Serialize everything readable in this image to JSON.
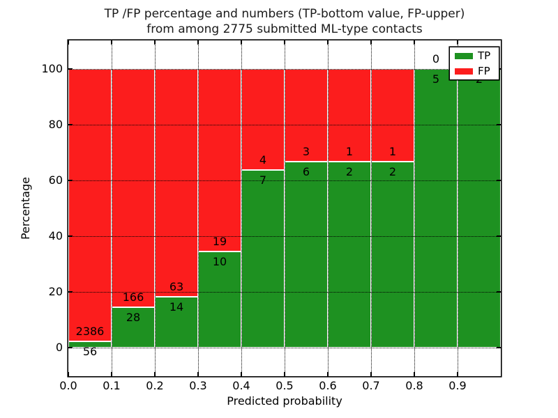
{
  "title": {
    "line1": "TP /FP percentage and numbers (TP-bottom value, FP-upper)",
    "line2": "from among 2775 submitted ML-type contacts"
  },
  "axes": {
    "xlabel": "Predicted probability",
    "ylabel": "Percentage",
    "x_tick_labels": [
      "0.0",
      "0.1",
      "0.2",
      "0.3",
      "0.4",
      "0.5",
      "0.6",
      "0.7",
      "0.8",
      "0.9"
    ],
    "y_tick_labels": [
      "0",
      "20",
      "40",
      "60",
      "80",
      "100"
    ]
  },
  "legend": {
    "items": [
      {
        "label": "TP",
        "color": "#1e9121"
      },
      {
        "label": "FP",
        "color": "#fc1d1d"
      }
    ]
  },
  "chart_data": {
    "type": "bar",
    "subtype": "stacked-percentage-histogram",
    "title": "TP /FP percentage and numbers (TP-bottom value, FP-upper) from among 2775 submitted ML-type contacts",
    "xlabel": "Predicted probability",
    "ylabel": "Percentage",
    "xlim": [
      0.0,
      1.0
    ],
    "ylim": [
      -10.25,
      110.25
    ],
    "x_bin_edges": [
      0.0,
      0.1,
      0.2,
      0.3,
      0.4,
      0.5,
      0.6,
      0.7,
      0.8,
      0.9,
      1.0
    ],
    "categories": [
      "0.0-0.1",
      "0.1-0.2",
      "0.2-0.3",
      "0.3-0.4",
      "0.4-0.5",
      "0.5-0.6",
      "0.6-0.7",
      "0.7-0.8",
      "0.8-0.9",
      "0.9-1.0"
    ],
    "series": [
      {
        "name": "TP",
        "position": "bottom",
        "color": "#1e9121",
        "counts": [
          56,
          28,
          14,
          10,
          7,
          6,
          2,
          2,
          5,
          2
        ]
      },
      {
        "name": "FP",
        "position": "top",
        "color": "#fc1d1d",
        "counts": [
          2386,
          166,
          63,
          19,
          4,
          3,
          1,
          1,
          0,
          0
        ]
      }
    ],
    "tp_percent": [
      2.3,
      14.4,
      18.2,
      34.5,
      63.6,
      66.7,
      66.7,
      66.7,
      100.0,
      100.0
    ],
    "total_contacts": 2775,
    "grid": "dotted-both-axes",
    "bar_edge_color": "#ffffff",
    "legend_position": "upper-right"
  }
}
